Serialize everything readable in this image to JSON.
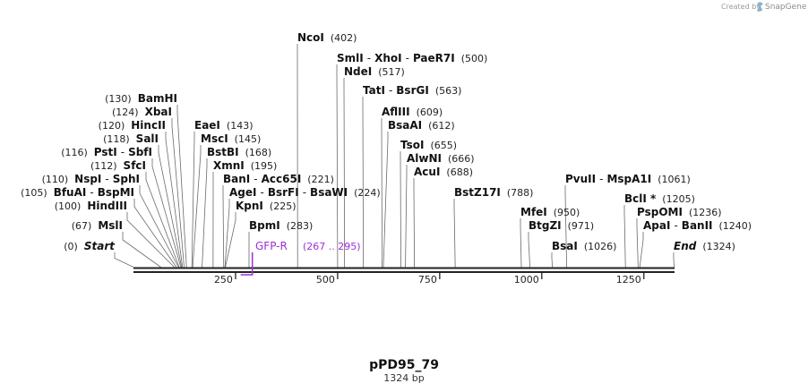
{
  "credit": "Created by",
  "brand": "SnapGene",
  "title": "pPD95_79",
  "length_label": "1324 bp",
  "sequence_length": 1324,
  "axis_ticks": [
    "250",
    "500",
    "750",
    "1000",
    "1250"
  ],
  "colors": {
    "feature": "#9b30d9",
    "ink": "#111111",
    "line": "#555555"
  },
  "feature": {
    "name": "GFP-R",
    "range": "(267 .. 295)",
    "start": 267,
    "end": 295
  },
  "labels": [
    {
      "names": [
        "NcoI"
      ],
      "pos_text": "(402)",
      "sites": [
        402
      ]
    },
    {
      "names": [
        "SmlI",
        "XhoI",
        "PaeR7I"
      ],
      "pos_text": "(500)",
      "sites": [
        500
      ]
    },
    {
      "names": [
        "NdeI"
      ],
      "pos_text": "(517)",
      "sites": [
        517
      ]
    },
    {
      "names": [
        "TatI",
        "BsrGI"
      ],
      "pos_text": "(563)",
      "sites": [
        563
      ]
    },
    {
      "names": [
        "AflIII"
      ],
      "pos_text": "(609)",
      "sites": [
        609
      ]
    },
    {
      "names": [
        "BsaAI"
      ],
      "pos_text": "(612)",
      "sites": [
        612
      ]
    },
    {
      "names": [
        "TsoI"
      ],
      "pos_text": "(655)",
      "sites": [
        655
      ]
    },
    {
      "names": [
        "AlwNI"
      ],
      "pos_text": "(666)",
      "sites": [
        666
      ]
    },
    {
      "names": [
        "AcuI"
      ],
      "pos_text": "(688)",
      "sites": [
        688
      ]
    },
    {
      "names": [
        "BstZ17I"
      ],
      "pos_text": "(788)",
      "sites": [
        788
      ]
    },
    {
      "names": [
        "MfeI"
      ],
      "pos_text": "(950)",
      "sites": [
        950
      ]
    },
    {
      "names": [
        "BtgZI"
      ],
      "pos_text": "(971)",
      "sites": [
        971
      ]
    },
    {
      "names": [
        "BsaI"
      ],
      "pos_text": "(1026)",
      "sites": [
        1026
      ]
    },
    {
      "names": [
        "PvuII",
        "MspA1I"
      ],
      "pos_text": "(1061)",
      "sites": [
        1061
      ]
    },
    {
      "names": [
        "BclI *"
      ],
      "pos_text": "(1205)",
      "sites": [
        1205
      ]
    },
    {
      "names": [
        "PspOMI"
      ],
      "pos_text": "(1236)",
      "sites": [
        1236
      ]
    },
    {
      "names": [
        "ApaI",
        "BanII"
      ],
      "pos_text": "(1240)",
      "sites": [
        1240
      ]
    },
    {
      "names": [
        "End"
      ],
      "pos_text": "(1324)",
      "sites": [
        1324
      ],
      "italic": true
    },
    {
      "names": [
        "BamHI"
      ],
      "pos_text": "(130)",
      "sites": [
        130
      ]
    },
    {
      "names": [
        "XbaI"
      ],
      "pos_text": "(124)",
      "sites": [
        124
      ]
    },
    {
      "names": [
        "HincII"
      ],
      "pos_text": "(120)",
      "sites": [
        120
      ]
    },
    {
      "names": [
        "SalI"
      ],
      "pos_text": "(118)",
      "sites": [
        118
      ]
    },
    {
      "names": [
        "PstI",
        "SbfI"
      ],
      "pos_text": "(116)",
      "sites": [
        116
      ]
    },
    {
      "names": [
        "SfcI"
      ],
      "pos_text": "(112)",
      "sites": [
        112
      ]
    },
    {
      "names": [
        "NspI",
        "SphI"
      ],
      "pos_text": "(110)",
      "sites": [
        110
      ]
    },
    {
      "names": [
        "BfuAI",
        "BspMI"
      ],
      "pos_text": "(105)",
      "sites": [
        105
      ]
    },
    {
      "names": [
        "HindIII"
      ],
      "pos_text": "(100)",
      "sites": [
        100
      ]
    },
    {
      "names": [
        "MslI"
      ],
      "pos_text": "(67)",
      "sites": [
        67
      ]
    },
    {
      "names": [
        "Start"
      ],
      "pos_text": "(0)",
      "sites": [
        0
      ],
      "italic": true
    },
    {
      "names": [
        "EaeI"
      ],
      "pos_text": "(143)",
      "sites": [
        143
      ]
    },
    {
      "names": [
        "MscI"
      ],
      "pos_text": "(145)",
      "sites": [
        145
      ]
    },
    {
      "names": [
        "BstBI"
      ],
      "pos_text": "(168)",
      "sites": [
        168
      ]
    },
    {
      "names": [
        "XmnI"
      ],
      "pos_text": "(195)",
      "sites": [
        195
      ]
    },
    {
      "names": [
        "BanI",
        "Acc65I"
      ],
      "pos_text": "(221)",
      "sites": [
        221
      ]
    },
    {
      "names": [
        "AgeI",
        "BsrFI",
        "BsaWI"
      ],
      "pos_text": "(224)",
      "sites": [
        224
      ]
    },
    {
      "names": [
        "KpnI"
      ],
      "pos_text": "(225)",
      "sites": [
        225
      ]
    },
    {
      "names": [
        "BpmI"
      ],
      "pos_text": "(283)",
      "sites": [
        283
      ]
    }
  ]
}
